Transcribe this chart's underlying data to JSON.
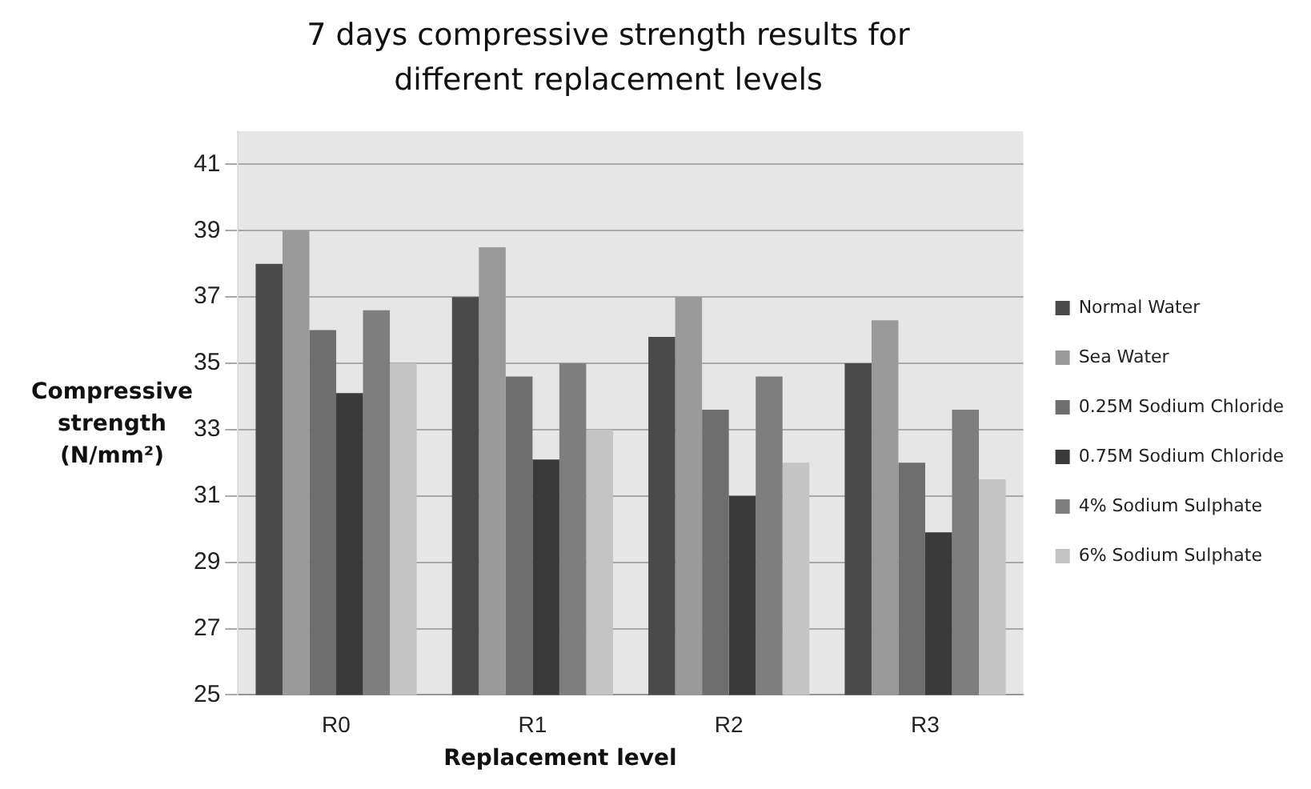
{
  "chart_data": {
    "type": "bar",
    "title": "7 days compressive strength results for different replacement levels",
    "xlabel": "Replacement level",
    "ylabel": "Compressive strength (N/mm²)",
    "categories": [
      "R0",
      "R1",
      "R2",
      "R3"
    ],
    "series": [
      {
        "name": "Normal Water",
        "color": "#4a4a4a",
        "values": [
          38,
          37,
          35.8,
          35
        ]
      },
      {
        "name": "Sea Water",
        "color": "#9a9a9a",
        "values": [
          39,
          38.5,
          37,
          36.3
        ]
      },
      {
        "name": "0.25M Sodium Chloride",
        "color": "#6e6e6e",
        "values": [
          36,
          34.6,
          33.6,
          32
        ]
      },
      {
        "name": "0.75M Sodium Chloride",
        "color": "#3a3a3a",
        "values": [
          34.1,
          32.1,
          31,
          29.9
        ]
      },
      {
        "name": "4% Sodium Sulphate",
        "color": "#7e7e7e",
        "values": [
          36.6,
          35,
          34.6,
          33.6
        ]
      },
      {
        "name": "6% Sodium Sulphate",
        "color": "#c4c4c4",
        "values": [
          35,
          33,
          32,
          31.5
        ]
      }
    ],
    "ylim": [
      25,
      42
    ],
    "yticks": [
      25,
      27,
      29,
      31,
      33,
      35,
      37,
      39,
      41
    ],
    "grid": "y",
    "legend": "right"
  }
}
